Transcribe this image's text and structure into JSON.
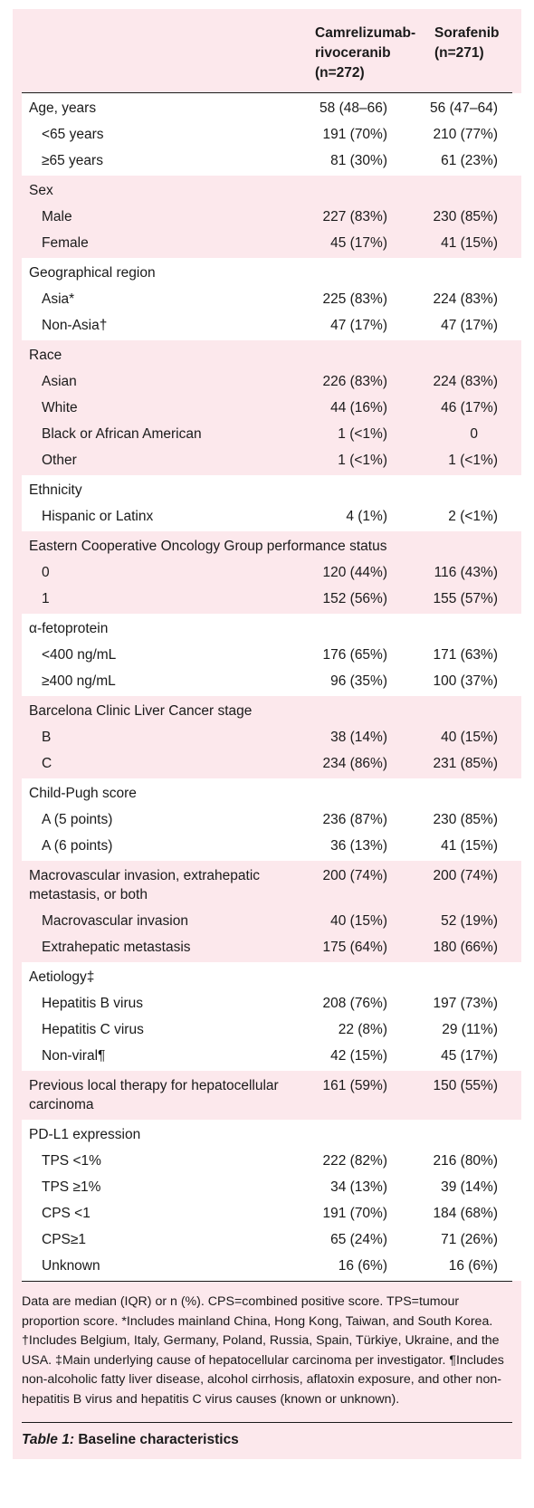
{
  "table": {
    "columns": [
      {
        "label": "Camrelizumab-\nrivoceranib\n(n=272)"
      },
      {
        "label": "Sorafenib\n(n=271)"
      }
    ],
    "groups": [
      {
        "rows": [
          {
            "label": "Age, years",
            "a": "58 (48–66)",
            "b": "56 (47–64)",
            "sub": false
          },
          {
            "label": "<65 years",
            "a": "191 (70%)",
            "b": "210 (77%)",
            "sub": true
          },
          {
            "label": "≥65 years",
            "a": "81 (30%)",
            "b": "61 (23%)",
            "sub": true
          }
        ]
      },
      {
        "rows": [
          {
            "label": "Sex",
            "a": "",
            "b": "",
            "sub": false
          },
          {
            "label": "Male",
            "a": "227 (83%)",
            "b": "230 (85%)",
            "sub": true
          },
          {
            "label": "Female",
            "a": "45 (17%)",
            "b": "41 (15%)",
            "sub": true
          }
        ]
      },
      {
        "rows": [
          {
            "label": "Geographical region",
            "a": "",
            "b": "",
            "sub": false
          },
          {
            "label": "Asia*",
            "a": "225 (83%)",
            "b": "224 (83%)",
            "sub": true
          },
          {
            "label": "Non-Asia†",
            "a": "47 (17%)",
            "b": "47 (17%)",
            "sub": true
          }
        ]
      },
      {
        "rows": [
          {
            "label": "Race",
            "a": "",
            "b": "",
            "sub": false
          },
          {
            "label": "Asian",
            "a": "226 (83%)",
            "b": "224 (83%)",
            "sub": true
          },
          {
            "label": "White",
            "a": "44 (16%)",
            "b": "46 (17%)",
            "sub": true
          },
          {
            "label": "Black or African American",
            "a": "1 (<1%)",
            "b": "0",
            "sub": true,
            "b_single": true
          },
          {
            "label": "Other",
            "a": "1 (<1%)",
            "b": "1 (<1%)",
            "sub": true
          }
        ]
      },
      {
        "rows": [
          {
            "label": "Ethnicity",
            "a": "",
            "b": "",
            "sub": false
          },
          {
            "label": "Hispanic or Latinx",
            "a": "4 (1%)",
            "b": "2 (<1%)",
            "sub": true
          }
        ]
      },
      {
        "rows": [
          {
            "label": "Eastern Cooperative Oncology Group performance status",
            "a": "",
            "b": "",
            "sub": false,
            "wide": true
          },
          {
            "label": "0",
            "a": "120 (44%)",
            "b": "116 (43%)",
            "sub": true
          },
          {
            "label": "1",
            "a": "152 (56%)",
            "b": "155 (57%)",
            "sub": true
          }
        ]
      },
      {
        "rows": [
          {
            "label": "α-fetoprotein",
            "a": "",
            "b": "",
            "sub": false
          },
          {
            "label": "<400 ng/mL",
            "a": "176 (65%)",
            "b": "171 (63%)",
            "sub": true
          },
          {
            "label": "≥400 ng/mL",
            "a": "96 (35%)",
            "b": "100 (37%)",
            "sub": true
          }
        ]
      },
      {
        "rows": [
          {
            "label": "Barcelona Clinic Liver Cancer stage",
            "a": "",
            "b": "",
            "sub": false
          },
          {
            "label": "B",
            "a": "38 (14%)",
            "b": "40 (15%)",
            "sub": true
          },
          {
            "label": "C",
            "a": "234 (86%)",
            "b": "231 (85%)",
            "sub": true
          }
        ]
      },
      {
        "rows": [
          {
            "label": "Child-Pugh score",
            "a": "",
            "b": "",
            "sub": false
          },
          {
            "label": "A (5 points)",
            "a": "236 (87%)",
            "b": "230 (85%)",
            "sub": true
          },
          {
            "label": "A (6 points)",
            "a": "36 (13%)",
            "b": "41 (15%)",
            "sub": true
          }
        ]
      },
      {
        "rows": [
          {
            "label": "Macrovascular invasion, extrahepatic metastasis, or both",
            "a": "200 (74%)",
            "b": "200 (74%)",
            "sub": false
          },
          {
            "label": "Macrovascular invasion",
            "a": "40 (15%)",
            "b": "52 (19%)",
            "sub": true
          },
          {
            "label": "Extrahepatic metastasis",
            "a": "175 (64%)",
            "b": "180 (66%)",
            "sub": true
          }
        ]
      },
      {
        "rows": [
          {
            "label": "Aetiology‡",
            "a": "",
            "b": "",
            "sub": false
          },
          {
            "label": "Hepatitis B virus",
            "a": "208 (76%)",
            "b": "197 (73%)",
            "sub": true
          },
          {
            "label": "Hepatitis C virus",
            "a": "22 (8%)",
            "b": "29 (11%)",
            "sub": true
          },
          {
            "label": "Non-viral¶",
            "a": "42 (15%)",
            "b": "45 (17%)",
            "sub": true
          }
        ]
      },
      {
        "rows": [
          {
            "label": "Previous local therapy for hepatocellular carcinoma",
            "a": "161 (59%)",
            "b": "150 (55%)",
            "sub": false
          }
        ]
      },
      {
        "rows": [
          {
            "label": "PD-L1 expression",
            "a": "",
            "b": "",
            "sub": false
          },
          {
            "label": "TPS <1%",
            "a": "222 (82%)",
            "b": "216 (80%)",
            "sub": true
          },
          {
            "label": "TPS ≥1%",
            "a": "34 (13%)",
            "b": "39 (14%)",
            "sub": true
          },
          {
            "label": "CPS <1",
            "a": "191 (70%)",
            "b": "184 (68%)",
            "sub": true
          },
          {
            "label": "CPS≥1",
            "a": "65 (24%)",
            "b": "71 (26%)",
            "sub": true
          },
          {
            "label": "Unknown",
            "a": "16 (6%)",
            "b": "16 (6%)",
            "sub": true
          }
        ]
      }
    ]
  },
  "footnote": "Data are median (IQR) or n (%). CPS=combined positive score. TPS=tumour proportion score. *Includes mainland China, Hong Kong, Taiwan, and South Korea. †Includes Belgium, Italy, Germany, Poland, Russia, Spain, Türkiye, Ukraine, and the USA. ‡Main underlying cause of hepatocellular carcinoma per investigator. ¶Includes non-alcoholic fatty liver disease, alcohol cirrhosis, aflatoxin exposure, and other non-hepatitis B virus and hepatitis C virus causes (known or unknown).",
  "caption": {
    "number": "Table 1:",
    "title": "Baseline characteristics"
  },
  "colors": {
    "panel_pink": "#fce8ec",
    "band_white": "#ffffff",
    "rule": "#1a1a1a"
  }
}
